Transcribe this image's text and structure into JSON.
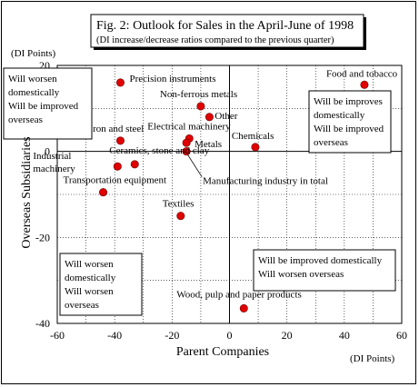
{
  "chart_data": {
    "type": "scatter",
    "title": "Fig. 2: Outlook for Sales in the April-June of 1998",
    "subtitle": "(DI increase/decrease ratios compared to the previous quarter)",
    "xlabel": "Parent Companies",
    "ylabel": "Overseas Subsidiaries",
    "x_unit": "(DI Points)",
    "y_unit": "(DI Points)",
    "xlim": [
      -60,
      60
    ],
    "ylim": [
      -40,
      20
    ],
    "xticks": [
      -60,
      -40,
      -20,
      0,
      20,
      40,
      60
    ],
    "yticks": [
      -40,
      -20,
      0,
      20
    ],
    "grid": true,
    "marker_color": "#e00000",
    "points": [
      {
        "label": "Food and tobacco",
        "x": 47,
        "y": 15.5
      },
      {
        "label": "Precision instruments",
        "x": -38,
        "y": 16
      },
      {
        "label": "Non-ferrous metals",
        "x": -10,
        "y": 10.5
      },
      {
        "label": "Other",
        "x": -7,
        "y": 8
      },
      {
        "label": "Electrical machinery",
        "x": -14,
        "y": 3
      },
      {
        "label": "Metals",
        "x": -15,
        "y": 2
      },
      {
        "label": "Chemicals",
        "x": 9,
        "y": 1
      },
      {
        "label": "Iron and steel",
        "x": -38,
        "y": 2.5
      },
      {
        "label": "Industrial machinery",
        "x": -39,
        "y": -3.5
      },
      {
        "label": "Ceramics, stone and clay",
        "x": -33,
        "y": -3
      },
      {
        "label": "Manufacturing industry in total",
        "x": -15,
        "y": 0
      },
      {
        "label": "Transportation equipment",
        "x": -44,
        "y": -9.5
      },
      {
        "label": "Textiles",
        "x": -17,
        "y": -15
      },
      {
        "label": "Wood, pulp and paper products",
        "x": 5,
        "y": -36.5
      }
    ],
    "quadrant_notes": [
      {
        "lines": [
          "Will worsen",
          "domestically",
          "Will be improved",
          "overseas"
        ]
      },
      {
        "lines": [
          "Will be improves",
          "domestically",
          "Will be improved",
          "overseas"
        ]
      },
      {
        "lines": [
          "Will worsen",
          "domestically",
          "Will worsen",
          "overseas"
        ]
      },
      {
        "lines": [
          "Will be improved domestically",
          "Will worsen overseas"
        ]
      }
    ]
  }
}
